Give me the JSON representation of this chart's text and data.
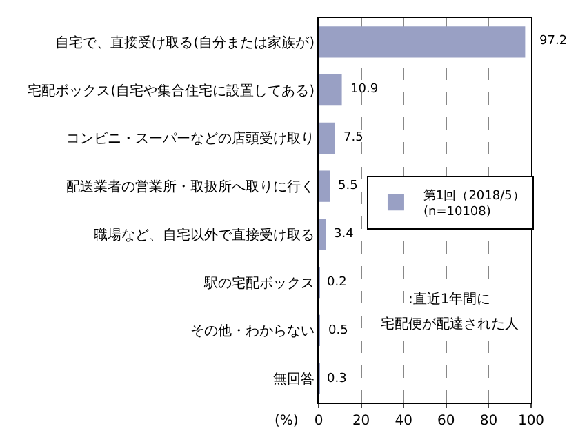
{
  "chart_data": {
    "type": "bar",
    "orientation": "horizontal",
    "categories": [
      "自宅で、直接受け取る(自分または家族が)",
      "宅配ボックス(自宅や集合住宅に設置してある)",
      "コンビニ・スーパーなどの店頭受け取り",
      "配送業者の営業所・取扱所へ取りに行く",
      "職場など、自宅以外で直接受け取る",
      "駅の宅配ボックス",
      "その他・わからない",
      "無回答"
    ],
    "series": [
      {
        "name": "第1回（2018/5）\n(n=10108)",
        "color": "#99a0c4",
        "values": [
          97.2,
          10.9,
          7.5,
          5.5,
          3.4,
          0.2,
          0.5,
          0.3
        ]
      }
    ],
    "xlim": [
      0,
      100
    ],
    "xticks": [
      0,
      20,
      40,
      60,
      80,
      100
    ],
    "xlabel": "(%)",
    "grid": "x",
    "legend": "right",
    "data_labels": true,
    "annotations": [
      ":直近1年間に",
      "宅配便が配達された人"
    ]
  }
}
